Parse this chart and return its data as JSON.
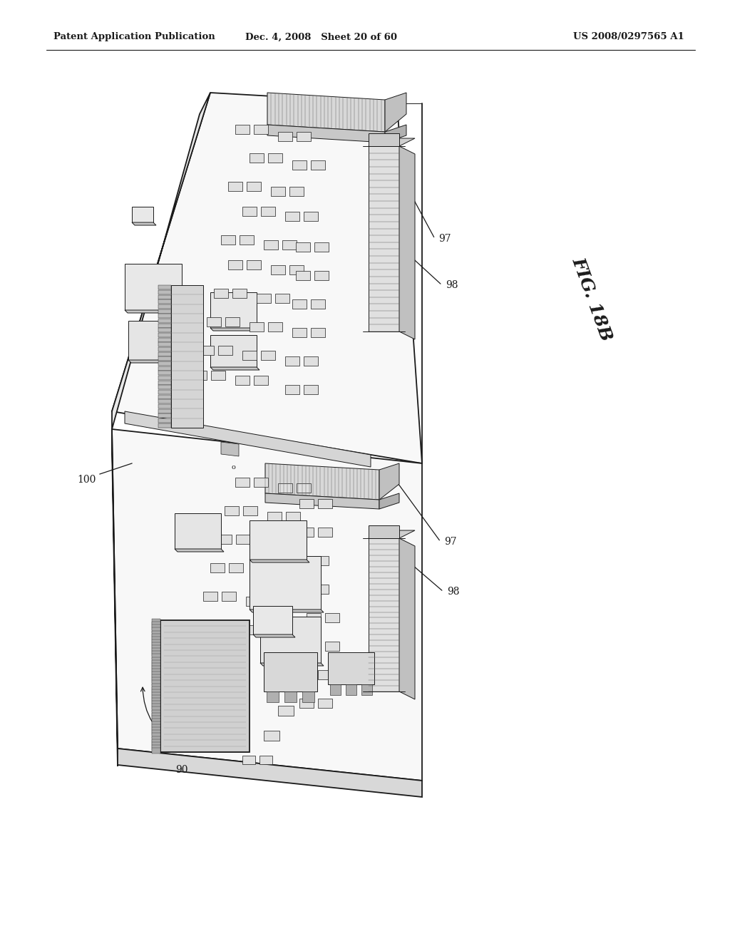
{
  "background_color": "#ffffff",
  "line_color": "#1a1a1a",
  "header_left": "Patent Application Publication",
  "header_center": "Dec. 4, 2008   Sheet 20 of 60",
  "header_right": "US 2008/0297565 A1",
  "fig_label": "FIG. 18B",
  "lw_main": 1.3,
  "lw_thin": 0.7,
  "lw_detail": 0.45,
  "board_face": "#f8f8f8",
  "board_edge": "#e8e8e8",
  "connector_face": "#e0e0e0",
  "connector_side": "#c8c8c8",
  "chip_face": "#ebebeb",
  "tooth_color": "#555555"
}
